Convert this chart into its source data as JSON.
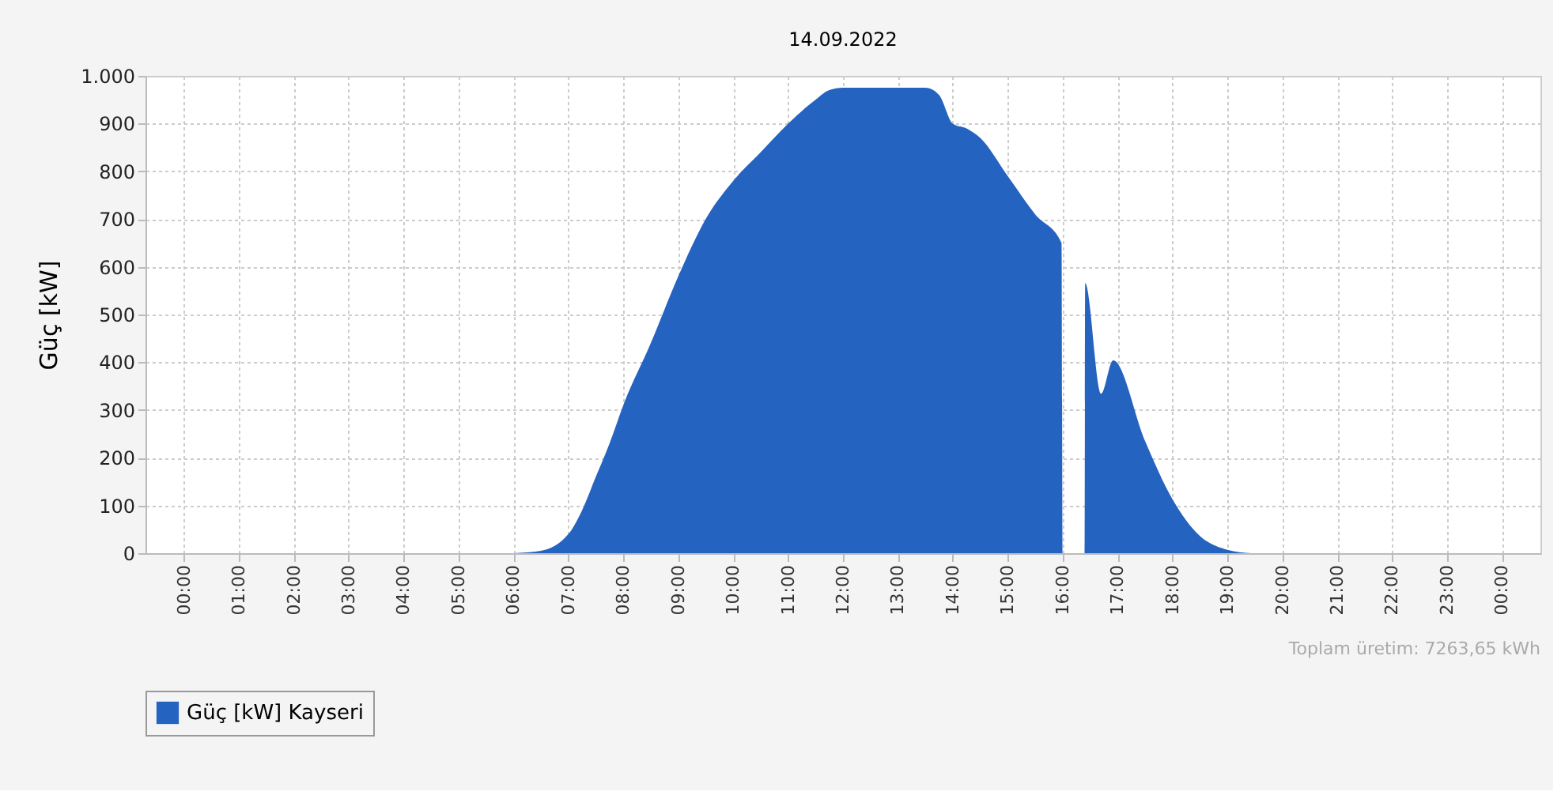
{
  "chart_data": {
    "type": "area",
    "title": "14.09.2022",
    "ylabel": "Güç [kW]",
    "x": [
      6.0,
      6.5,
      7.0,
      7.25,
      7.5,
      7.75,
      8.0,
      8.5,
      9.0,
      9.5,
      10.0,
      10.5,
      11.0,
      11.5,
      11.75,
      12.0,
      13.0,
      13.5,
      13.75,
      14.0,
      14.25,
      14.5,
      15.0,
      15.5,
      15.98,
      16.0,
      16.4,
      16.41,
      16.7,
      16.92,
      17.5,
      18.0,
      18.5,
      19.0,
      19.43
    ],
    "series": [
      {
        "name": "Güç [kW] Kayseri",
        "color": "#2563c0",
        "values": [
          0,
          5,
          40,
          90,
          160,
          230,
          310,
          440,
          580,
          700,
          780,
          840,
          900,
          950,
          970,
          975,
          975,
          975,
          960,
          900,
          890,
          870,
          790,
          710,
          650,
          0,
          0,
          566,
          334,
          404,
          235,
          113,
          36,
          7,
          0
        ]
      }
    ],
    "xlim": [
      -0.7,
      24.7
    ],
    "xticks": [
      {
        "value": 0,
        "label": "00:00"
      },
      {
        "value": 1,
        "label": "01:00"
      },
      {
        "value": 2,
        "label": "02:00"
      },
      {
        "value": 3,
        "label": "03:00"
      },
      {
        "value": 4,
        "label": "04:00"
      },
      {
        "value": 5,
        "label": "05:00"
      },
      {
        "value": 6,
        "label": "06:00"
      },
      {
        "value": 7,
        "label": "07:00"
      },
      {
        "value": 8,
        "label": "08:00"
      },
      {
        "value": 9,
        "label": "09:00"
      },
      {
        "value": 10,
        "label": "10:00"
      },
      {
        "value": 11,
        "label": "11:00"
      },
      {
        "value": 12,
        "label": "12:00"
      },
      {
        "value": 13,
        "label": "13:00"
      },
      {
        "value": 14,
        "label": "14:00"
      },
      {
        "value": 15,
        "label": "15:00"
      },
      {
        "value": 16,
        "label": "16:00"
      },
      {
        "value": 17,
        "label": "17:00"
      },
      {
        "value": 18,
        "label": "18:00"
      },
      {
        "value": 19,
        "label": "19:00"
      },
      {
        "value": 20,
        "label": "20:00"
      },
      {
        "value": 21,
        "label": "21:00"
      },
      {
        "value": 22,
        "label": "22:00"
      },
      {
        "value": 23,
        "label": "23:00"
      },
      {
        "value": 24,
        "label": "00:00"
      }
    ],
    "ylim": [
      0,
      1000
    ],
    "yticks": [
      0,
      100,
      200,
      300,
      400,
      500,
      600,
      700,
      800,
      900,
      {
        "value": 1000,
        "label": "1.000"
      }
    ],
    "grid": true,
    "legend": "bottom",
    "annotations": [
      "Toplam üretim: 7263,65 kWh"
    ]
  }
}
